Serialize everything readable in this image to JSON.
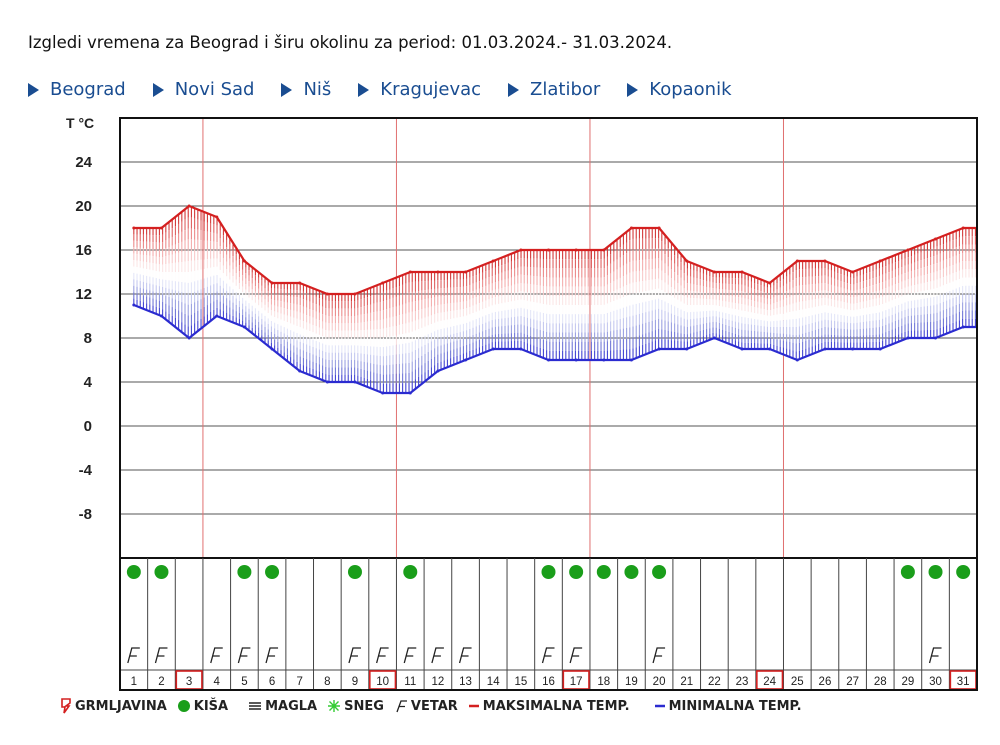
{
  "header": {
    "title": "Izgledi vremena za Beograd i širu okolinu za period: 01.03.2024.- 31.03.2024."
  },
  "nav": {
    "links": [
      "Beograd",
      "Novi Sad",
      "Niš",
      "Kragujevac",
      "Zlatibor",
      "Kopaonik"
    ]
  },
  "chart_data": {
    "type": "area",
    "ylabel": "T °C",
    "ylim": [
      -12,
      28
    ],
    "yticks": [
      24,
      20,
      16,
      12,
      8,
      4,
      0,
      -4,
      -8
    ],
    "grid": true,
    "x": [
      1,
      2,
      3,
      4,
      5,
      6,
      7,
      8,
      9,
      10,
      11,
      12,
      13,
      14,
      15,
      16,
      17,
      18,
      19,
      20,
      21,
      22,
      23,
      24,
      25,
      26,
      27,
      28,
      29,
      30,
      31
    ],
    "highlighted_days": [
      3,
      10,
      17,
      24,
      31
    ],
    "series": [
      {
        "name": "MAKSIMALNA TEMP.",
        "color": "#d42020",
        "values": [
          18,
          18,
          20,
          19,
          15,
          13,
          13,
          12,
          12,
          13,
          14,
          14,
          14,
          15,
          16,
          16,
          16,
          16,
          18,
          18,
          15,
          14,
          14,
          13,
          15,
          15,
          14,
          15,
          16,
          17,
          18
        ]
      },
      {
        "name": "MINIMALNA TEMP.",
        "color": "#2b2bd0",
        "values": [
          11,
          10,
          8,
          10,
          9,
          7,
          5,
          4,
          4,
          3,
          3,
          5,
          6,
          7,
          7,
          6,
          6,
          6,
          6,
          7,
          7,
          8,
          7,
          7,
          6,
          7,
          7,
          7,
          8,
          8,
          9
        ]
      }
    ],
    "rain_days": [
      1,
      2,
      5,
      6,
      9,
      11,
      16,
      17,
      18,
      19,
      20,
      29,
      30,
      31
    ],
    "wind_days": [
      1,
      2,
      4,
      5,
      6,
      9,
      10,
      11,
      12,
      13,
      16,
      17,
      20,
      30
    ],
    "legend": [
      {
        "key": "thunder",
        "label": "GRMLJAVINA",
        "color": "#d42020"
      },
      {
        "key": "rain",
        "label": "KIŠA",
        "color": "#1a9e1a"
      },
      {
        "key": "fog",
        "label": "MAGLA",
        "color": "#222222"
      },
      {
        "key": "snow",
        "label": "SNEG",
        "color": "#33cc33"
      },
      {
        "key": "wind",
        "label": "VETAR",
        "color": "#222222"
      },
      {
        "key": "max",
        "label": "MAKSIMALNA TEMP.",
        "color": "#d42020"
      },
      {
        "key": "min",
        "label": "MINIMALNA TEMP.",
        "color": "#2b2bd0"
      }
    ]
  }
}
